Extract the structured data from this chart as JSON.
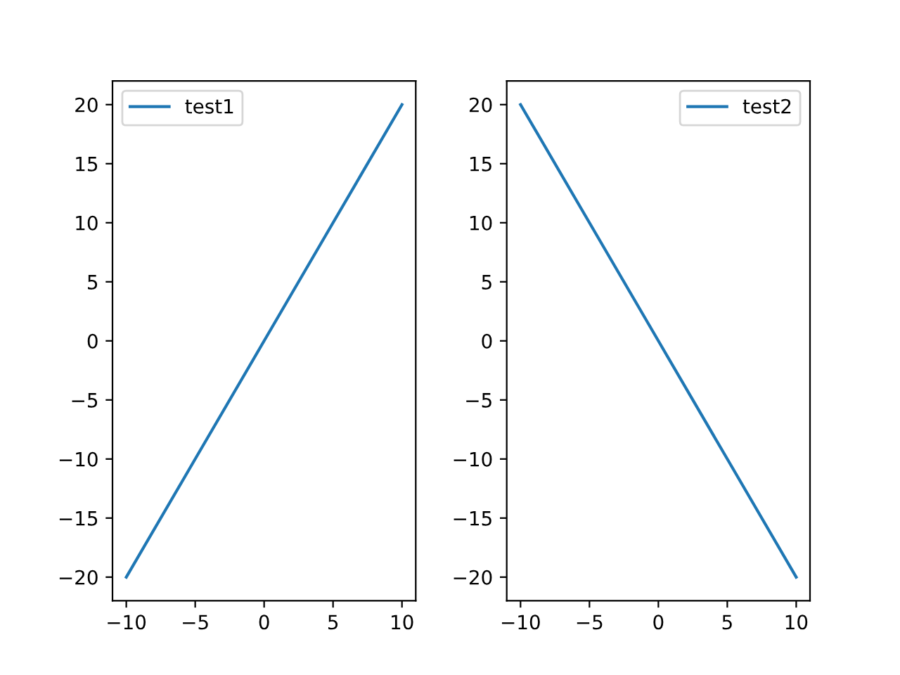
{
  "chart_data": [
    {
      "type": "line",
      "series": [
        {
          "name": "test1",
          "color": "#1f77b4",
          "x": [
            -10,
            -5,
            0,
            5,
            10
          ],
          "values": [
            -20,
            -10,
            0,
            10,
            20
          ]
        }
      ],
      "xlim": [
        -11,
        11
      ],
      "ylim": [
        -22,
        22
      ],
      "xticks": [
        -10,
        -5,
        0,
        5,
        10
      ],
      "yticks": [
        -20,
        -15,
        -10,
        -5,
        0,
        5,
        10,
        15,
        20
      ],
      "legend": "top left",
      "grid": false
    },
    {
      "type": "line",
      "series": [
        {
          "name": "test2",
          "color": "#1f77b4",
          "x": [
            -10,
            -5,
            0,
            5,
            10
          ],
          "values": [
            20,
            10,
            0,
            -10,
            -20
          ]
        }
      ],
      "xlim": [
        -11,
        11
      ],
      "ylim": [
        -22,
        22
      ],
      "xticks": [
        -10,
        -5,
        0,
        5,
        10
      ],
      "yticks": [
        -20,
        -15,
        -10,
        -5,
        0,
        5,
        10,
        15,
        20
      ],
      "legend": "top right",
      "grid": false
    }
  ]
}
